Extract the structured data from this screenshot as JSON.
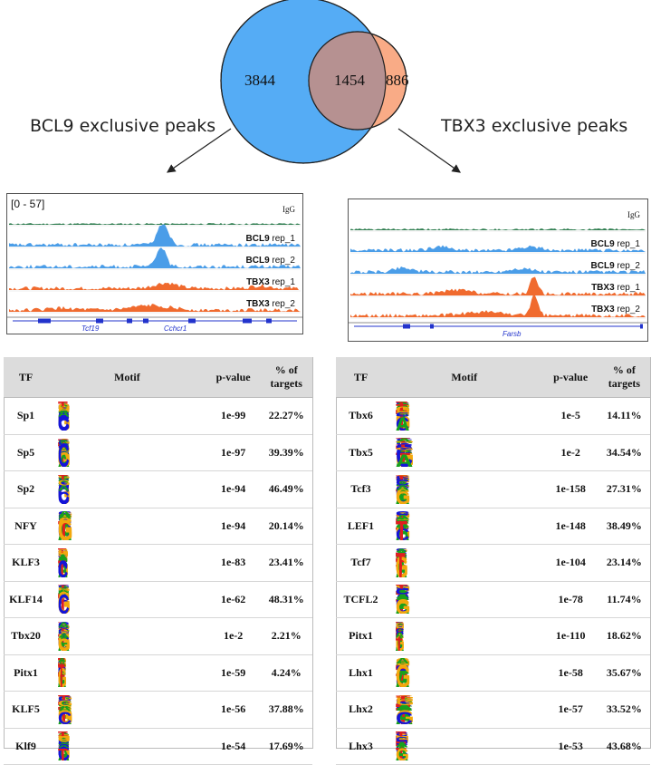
{
  "venn": {
    "left_count": "3844",
    "overlap_count": "1454",
    "right_count": "886",
    "left_color": "#55acf5",
    "right_color": "#f9ab86",
    "overlap_color": "#b69191",
    "left_label": "BCL9 exclusive peaks",
    "right_label": "TBX3 exclusive peaks"
  },
  "left_browser": {
    "range": "[0 - 57]",
    "tracks": [
      {
        "name": "IgG",
        "rep": ""
      },
      {
        "name": "BCL9",
        "rep": " rep_1"
      },
      {
        "name": "BCL9",
        "rep": " rep_2"
      },
      {
        "name": "TBX3",
        "rep": " rep_1"
      },
      {
        "name": "TBX3",
        "rep": " rep_2"
      }
    ],
    "genes": [
      "Tcf19",
      "Cchcr1"
    ]
  },
  "right_browser": {
    "tracks": [
      {
        "name": "IgG",
        "rep": ""
      },
      {
        "name": "BCL9",
        "rep": " rep_1"
      },
      {
        "name": "BCL9",
        "rep": " rep_2"
      },
      {
        "name": "TBX3",
        "rep": " rep_1"
      },
      {
        "name": "TBX3",
        "rep": " rep_2"
      }
    ],
    "genes": [
      "Farsb"
    ]
  },
  "colors": {
    "igg": "#2e7d4f",
    "bcl9": "#4a9de8",
    "tbx3": "#f06a2e"
  },
  "table_headers": {
    "tf": "TF",
    "motif": "Motif",
    "pvalue": "p-value",
    "targets_line1": "% of",
    "targets_line2": "targets"
  },
  "left_table": [
    {
      "tf": "Sp1",
      "motif": "GGCCCCGCCCCC",
      "pvalue": "1e-99",
      "targets": "22.27%"
    },
    {
      "tf": "Sp5",
      "motif": "AGTGGGCGGAGC",
      "pvalue": "1e-97",
      "targets": "39.39%"
    },
    {
      "tf": "Sp2",
      "motif": "CGGCCCCGCCCC",
      "pvalue": "1e-94",
      "targets": "46.49%"
    },
    {
      "tf": "NFY",
      "motif": "AGCCAATCGG",
      "pvalue": "1e-94",
      "targets": "20.14%"
    },
    {
      "tf": "KLF3",
      "motif": "TGGCCCCACCCTCC",
      "pvalue": "1e-83",
      "targets": "23.41%"
    },
    {
      "tf": "KLF14",
      "motif": "GGTGGGCGTGGC",
      "pvalue": "1e-62",
      "targets": "48.31%"
    },
    {
      "tf": "Tbx20",
      "motif": "GGTGCTGACAGG",
      "pvalue": "1e-2",
      "targets": "2.21%"
    },
    {
      "tf": "Pitx1",
      "motif": "TTAATTAAAACAGATGT",
      "pvalue": "1e-59",
      "targets": "4.24%"
    },
    {
      "tf": "KLF5",
      "motif": "AGGGTGTGGC",
      "pvalue": "1e-56",
      "targets": "37.88%"
    },
    {
      "tf": "Klf9",
      "motif": "GCCACGCCCACT",
      "pvalue": "1e-54",
      "targets": "17.69%"
    }
  ],
  "right_table": [
    {
      "tf": "Tbx6",
      "motif": "GAGGTGTCAA",
      "pvalue": "1e-5",
      "targets": "14.11%"
    },
    {
      "tf": "Tbx5",
      "motif": "AGGTGTCA",
      "pvalue": "1e-2",
      "targets": "34.54%"
    },
    {
      "tf": "Tcf3",
      "motif": "ACATCAAAGG",
      "pvalue": "1e-158",
      "targets": "27.31%"
    },
    {
      "tf": "LEF1",
      "motif": "CCTTTGATCT",
      "pvalue": "1e-148",
      "targets": "38.49%"
    },
    {
      "tf": "Tcf7",
      "motif": "CTTTGATGTGGT",
      "pvalue": "1e-104",
      "targets": "23.14%"
    },
    {
      "tf": "TCFL2",
      "motif": "ACTTCAAAGG",
      "pvalue": "1e-78",
      "targets": "11.74%"
    },
    {
      "tf": "Pitx1",
      "motif": "TTAATTAAAACAGATGT",
      "pvalue": "1e-110",
      "targets": "18.62%"
    },
    {
      "tf": "Lhx1",
      "motif": "AGCTAATTAG",
      "pvalue": "1e-58",
      "targets": "35.67%"
    },
    {
      "tf": "Lhx2",
      "motif": "TAATTAGC",
      "pvalue": "1e-57",
      "targets": "33.52%"
    },
    {
      "tf": "Lhx3",
      "motif": "AATCTAATTAG",
      "pvalue": "1e-53",
      "targets": "43.68%"
    }
  ]
}
